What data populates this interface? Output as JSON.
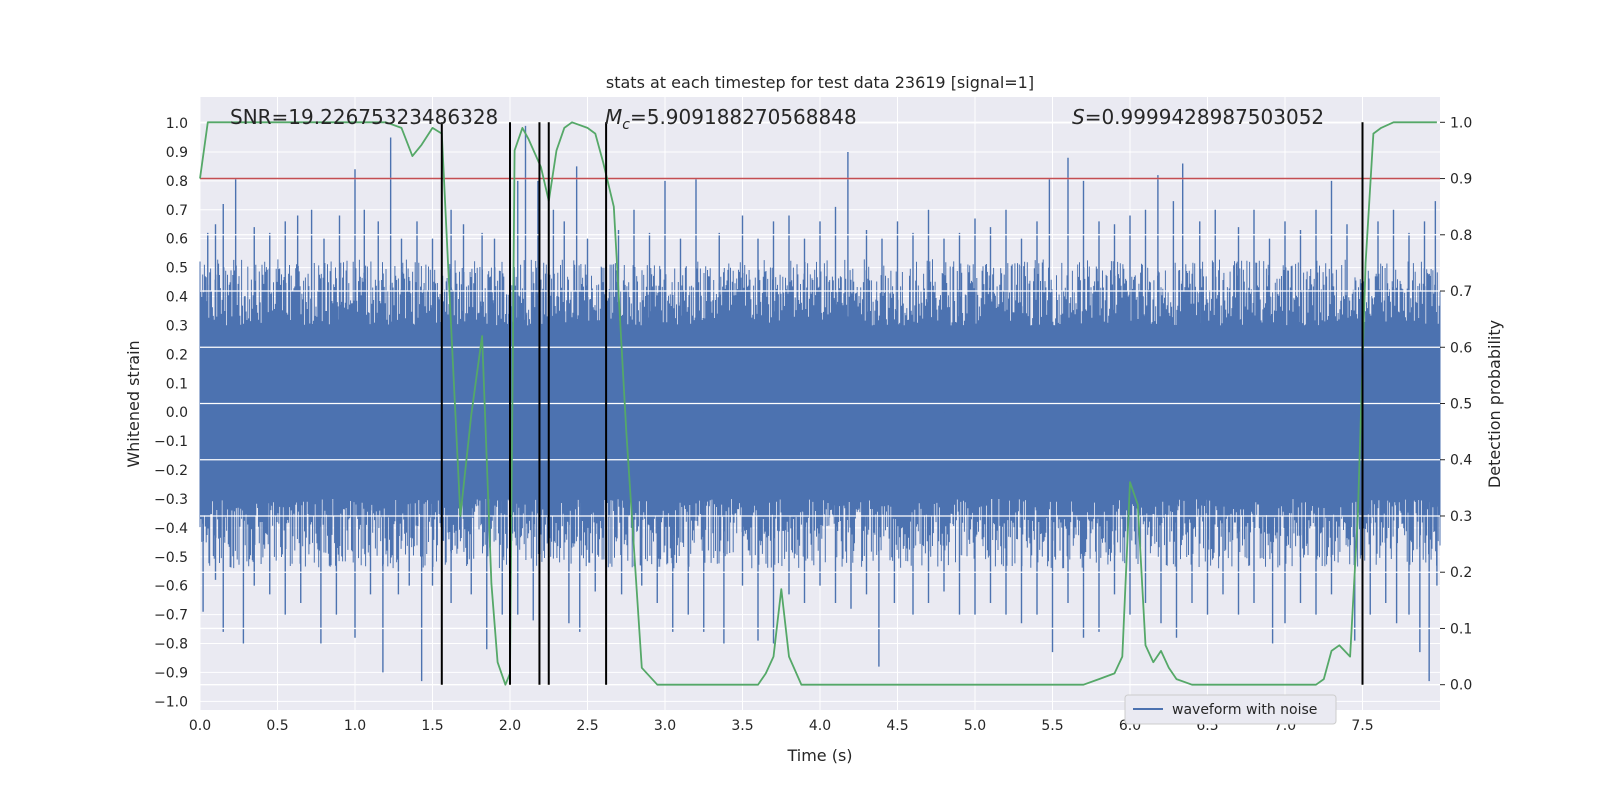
{
  "chart_data": {
    "type": "line",
    "title": "stats at each timestep for test data 23619 [signal=1]",
    "xlabel": "Time (s)",
    "ylabel_left": "Whitened strain",
    "ylabel_right": "Detection probability",
    "xlim": [
      0,
      8.0
    ],
    "ylim_left": [
      -1.03,
      1.09
    ],
    "ylim_right": [
      -0.045,
      1.045
    ],
    "x_ticks": [
      0.0,
      0.5,
      1.0,
      1.5,
      2.0,
      2.5,
      3.0,
      3.5,
      4.0,
      4.5,
      5.0,
      5.5,
      6.0,
      6.5,
      7.0,
      7.5
    ],
    "x_tick_labels": [
      "0.0",
      "0.5",
      "1.0",
      "1.5",
      "2.0",
      "2.5",
      "3.0",
      "3.5",
      "4.0",
      "4.5",
      "5.0",
      "5.5",
      "6.0",
      "6.5",
      "7.0",
      "7.5"
    ],
    "y_left_ticks": [
      -1.0,
      -0.9,
      -0.8,
      -0.7,
      -0.6,
      -0.5,
      -0.4,
      -0.3,
      -0.2,
      -0.1,
      0.0,
      0.1,
      0.2,
      0.3,
      0.4,
      0.5,
      0.6,
      0.7,
      0.8,
      0.9,
      1.0
    ],
    "y_left_tick_labels": [
      "−1.0",
      "−0.9",
      "−0.8",
      "−0.7",
      "−0.6",
      "−0.5",
      "−0.4",
      "−0.3",
      "−0.2",
      "−0.1",
      "0.0",
      "0.1",
      "0.2",
      "0.3",
      "0.4",
      "0.5",
      "0.6",
      "0.7",
      "0.8",
      "0.9",
      "1.0"
    ],
    "y_right_ticks": [
      0.0,
      0.1,
      0.2,
      0.3,
      0.4,
      0.5,
      0.6,
      0.7,
      0.8,
      0.9,
      1.0
    ],
    "y_right_tick_labels": [
      "0.0",
      "0.1",
      "0.2",
      "0.3",
      "0.4",
      "0.5",
      "0.6",
      "0.7",
      "0.8",
      "0.9",
      "1.0"
    ],
    "annotations": {
      "snr": "SNR=19.22675323486328",
      "mc_symbol": "M",
      "mc_subscript": "c",
      "mc_value": "=5.909188270568848",
      "s_symbol": "S",
      "s_value": "=0.9999428987503052"
    },
    "legend": {
      "position": "lower-center-right",
      "entries": [
        "waveform with noise"
      ]
    },
    "threshold": {
      "y_right": 0.9,
      "color": "#c44e52"
    },
    "vertical_lines_x": [
      1.56,
      2.0,
      2.19,
      2.25,
      2.62,
      7.5
    ],
    "waveform": {
      "name": "waveform with noise",
      "color": "#4c72b0",
      "envelope_core": 0.3,
      "peaks_high": [
        [
          0.05,
          0.62
        ],
        [
          0.1,
          0.65
        ],
        [
          0.15,
          0.72
        ],
        [
          0.23,
          0.81
        ],
        [
          0.35,
          0.64
        ],
        [
          0.45,
          0.62
        ],
        [
          0.55,
          0.66
        ],
        [
          0.63,
          0.68
        ],
        [
          0.72,
          0.7
        ],
        [
          0.8,
          0.6
        ],
        [
          0.9,
          0.68
        ],
        [
          1.0,
          0.84
        ],
        [
          1.06,
          0.7
        ],
        [
          1.15,
          0.66
        ],
        [
          1.23,
          0.95
        ],
        [
          1.3,
          0.6
        ],
        [
          1.4,
          0.66
        ],
        [
          1.5,
          0.6
        ],
        [
          1.62,
          0.7
        ],
        [
          1.7,
          0.65
        ],
        [
          1.82,
          0.62
        ],
        [
          1.9,
          0.6
        ],
        [
          2.05,
          0.8
        ],
        [
          2.1,
          0.99
        ],
        [
          2.18,
          0.8
        ],
        [
          2.28,
          0.7
        ],
        [
          2.35,
          0.66
        ],
        [
          2.43,
          0.85
        ],
        [
          2.5,
          0.6
        ],
        [
          2.62,
          0.66
        ],
        [
          2.7,
          0.63
        ],
        [
          2.8,
          0.7
        ],
        [
          2.9,
          0.62
        ],
        [
          3.0,
          0.8
        ],
        [
          3.1,
          0.6
        ],
        [
          3.2,
          0.81
        ],
        [
          3.35,
          0.62
        ],
        [
          3.5,
          0.68
        ],
        [
          3.6,
          0.6
        ],
        [
          3.7,
          0.66
        ],
        [
          3.8,
          0.68
        ],
        [
          3.9,
          0.6
        ],
        [
          4.0,
          0.66
        ],
        [
          4.1,
          0.71
        ],
        [
          4.18,
          0.9
        ],
        [
          4.3,
          0.63
        ],
        [
          4.4,
          0.6
        ],
        [
          4.5,
          0.66
        ],
        [
          4.6,
          0.62
        ],
        [
          4.7,
          0.7
        ],
        [
          4.8,
          0.6
        ],
        [
          4.9,
          0.62
        ],
        [
          5.0,
          0.67
        ],
        [
          5.1,
          0.64
        ],
        [
          5.2,
          0.7
        ],
        [
          5.3,
          0.6
        ],
        [
          5.4,
          0.66
        ],
        [
          5.48,
          0.81
        ],
        [
          5.6,
          0.88
        ],
        [
          5.7,
          0.8
        ],
        [
          5.8,
          0.66
        ],
        [
          5.9,
          0.65
        ],
        [
          6.0,
          0.68
        ],
        [
          6.1,
          0.7
        ],
        [
          6.18,
          0.82
        ],
        [
          6.28,
          0.73
        ],
        [
          6.34,
          0.86
        ],
        [
          6.45,
          0.66
        ],
        [
          6.55,
          0.7
        ],
        [
          6.7,
          0.64
        ],
        [
          6.8,
          0.7
        ],
        [
          6.9,
          0.6
        ],
        [
          7.0,
          0.66
        ],
        [
          7.1,
          0.63
        ],
        [
          7.2,
          0.7
        ],
        [
          7.3,
          0.8
        ],
        [
          7.4,
          0.65
        ],
        [
          7.5,
          0.64
        ],
        [
          7.6,
          0.66
        ],
        [
          7.7,
          0.7
        ],
        [
          7.8,
          0.62
        ],
        [
          7.9,
          0.66
        ],
        [
          7.97,
          0.73
        ]
      ],
      "peaks_low": [
        [
          0.02,
          -0.69
        ],
        [
          0.1,
          -0.58
        ],
        [
          0.15,
          -0.76
        ],
        [
          0.28,
          -0.8
        ],
        [
          0.35,
          -0.6
        ],
        [
          0.45,
          -0.63
        ],
        [
          0.55,
          -0.7
        ],
        [
          0.65,
          -0.66
        ],
        [
          0.78,
          -0.8
        ],
        [
          0.88,
          -0.7
        ],
        [
          1.0,
          -0.78
        ],
        [
          1.1,
          -0.63
        ],
        [
          1.18,
          -0.9
        ],
        [
          1.28,
          -0.63
        ],
        [
          1.35,
          -0.6
        ],
        [
          1.43,
          -0.93
        ],
        [
          1.5,
          -0.6
        ],
        [
          1.62,
          -0.66
        ],
        [
          1.75,
          -0.63
        ],
        [
          1.85,
          -0.82
        ],
        [
          1.95,
          -0.7
        ],
        [
          2.05,
          -0.7
        ],
        [
          2.15,
          -0.72
        ],
        [
          2.25,
          -0.87
        ],
        [
          2.38,
          -0.73
        ],
        [
          2.45,
          -0.76
        ],
        [
          2.55,
          -0.62
        ],
        [
          2.62,
          -0.7
        ],
        [
          2.72,
          -0.63
        ],
        [
          2.85,
          -0.6
        ],
        [
          2.95,
          -0.66
        ],
        [
          3.05,
          -0.76
        ],
        [
          3.15,
          -0.7
        ],
        [
          3.25,
          -0.76
        ],
        [
          3.38,
          -0.8
        ],
        [
          3.5,
          -0.6
        ],
        [
          3.6,
          -0.79
        ],
        [
          3.7,
          -0.8
        ],
        [
          3.8,
          -0.63
        ],
        [
          3.9,
          -0.66
        ],
        [
          4.0,
          -0.6
        ],
        [
          4.1,
          -0.66
        ],
        [
          4.2,
          -0.68
        ],
        [
          4.3,
          -0.63
        ],
        [
          4.38,
          -0.88
        ],
        [
          4.48,
          -0.66
        ],
        [
          4.6,
          -0.7
        ],
        [
          4.7,
          -0.66
        ],
        [
          4.8,
          -0.62
        ],
        [
          4.9,
          -0.7
        ],
        [
          5.0,
          -0.7
        ],
        [
          5.1,
          -0.66
        ],
        [
          5.2,
          -0.7
        ],
        [
          5.3,
          -0.73
        ],
        [
          5.4,
          -0.7
        ],
        [
          5.5,
          -0.83
        ],
        [
          5.6,
          -0.66
        ],
        [
          5.7,
          -0.78
        ],
        [
          5.8,
          -0.76
        ],
        [
          5.9,
          -0.63
        ],
        [
          6.0,
          -0.7
        ],
        [
          6.1,
          -0.66
        ],
        [
          6.2,
          -0.73
        ],
        [
          6.3,
          -0.78
        ],
        [
          6.4,
          -0.66
        ],
        [
          6.5,
          -0.7
        ],
        [
          6.6,
          -0.63
        ],
        [
          6.7,
          -0.7
        ],
        [
          6.8,
          -0.66
        ],
        [
          6.92,
          -0.8
        ],
        [
          7.0,
          -0.73
        ],
        [
          7.1,
          -0.66
        ],
        [
          7.2,
          -0.7
        ],
        [
          7.3,
          -0.63
        ],
        [
          7.45,
          -0.79
        ],
        [
          7.55,
          -0.7
        ],
        [
          7.65,
          -0.66
        ],
        [
          7.72,
          -0.73
        ],
        [
          7.8,
          -0.7
        ],
        [
          7.87,
          -0.83
        ],
        [
          7.93,
          -0.93
        ],
        [
          7.98,
          -0.6
        ]
      ]
    },
    "detection_probability": {
      "color": "#55a868",
      "x": [
        0.0,
        0.05,
        0.1,
        0.2,
        0.4,
        0.6,
        0.8,
        1.0,
        1.2,
        1.3,
        1.37,
        1.43,
        1.5,
        1.56,
        1.6,
        1.68,
        1.75,
        1.82,
        1.88,
        1.92,
        1.97,
        2.0,
        2.03,
        2.08,
        2.12,
        2.2,
        2.25,
        2.3,
        2.35,
        2.4,
        2.5,
        2.55,
        2.6,
        2.67,
        2.75,
        2.85,
        2.95,
        3.1,
        3.3,
        3.5,
        3.6,
        3.65,
        3.7,
        3.75,
        3.8,
        3.88,
        3.95,
        4.0,
        4.05,
        4.2,
        4.5,
        4.8,
        5.0,
        5.3,
        5.5,
        5.7,
        5.8,
        5.9,
        5.95,
        6.0,
        6.05,
        6.1,
        6.15,
        6.2,
        6.25,
        6.3,
        6.4,
        6.6,
        6.9,
        7.1,
        7.2,
        7.25,
        7.3,
        7.35,
        7.42,
        7.47,
        7.52,
        7.57,
        7.62,
        7.7,
        7.8,
        7.98
      ],
      "y": [
        0.9,
        1.0,
        1.0,
        1.0,
        1.0,
        1.0,
        1.0,
        1.0,
        1.0,
        0.99,
        0.94,
        0.96,
        0.99,
        0.98,
        0.75,
        0.3,
        0.48,
        0.62,
        0.18,
        0.04,
        0.0,
        0.02,
        0.95,
        0.99,
        0.97,
        0.92,
        0.86,
        0.95,
        0.99,
        1.0,
        0.99,
        0.98,
        0.93,
        0.85,
        0.45,
        0.03,
        0.0,
        0.0,
        0.0,
        0.0,
        0.0,
        0.02,
        0.05,
        0.17,
        0.05,
        0.0,
        0.0,
        0.0,
        0.0,
        0.0,
        0.0,
        0.0,
        0.0,
        0.0,
        0.0,
        0.0,
        0.01,
        0.02,
        0.05,
        0.36,
        0.32,
        0.07,
        0.04,
        0.06,
        0.03,
        0.01,
        0.0,
        0.0,
        0.0,
        0.0,
        0.0,
        0.01,
        0.06,
        0.07,
        0.05,
        0.3,
        0.75,
        0.98,
        0.99,
        1.0,
        1.0,
        1.0
      ]
    }
  }
}
